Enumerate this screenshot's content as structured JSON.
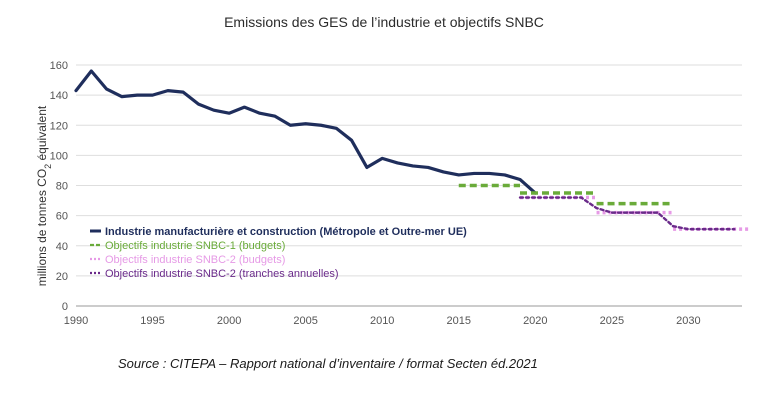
{
  "chart_data": {
    "type": "line",
    "title": "Emissions des GES de l’industrie et objectifs SNBC",
    "ylabel_main": "millions de tonnes CO",
    "ylabel_sub": "2",
    "ylabel_tail": " équivalent",
    "xlabel": "",
    "ylim": [
      0,
      160
    ],
    "xlim": [
      1990,
      2033.5
    ],
    "grid": true,
    "legend_position": "bottom-left",
    "x_ticks": [
      1990,
      1995,
      2000,
      2005,
      2010,
      2015,
      2020,
      2025,
      2030
    ],
    "y_ticks": [
      0,
      20,
      40,
      60,
      80,
      100,
      120,
      140,
      160
    ],
    "series": [
      {
        "name": "Industrie manufacturière et construction (Métropole et Outre-mer UE)",
        "style": "solid",
        "color": "#1f2e5c",
        "x": [
          1990,
          1991,
          1992,
          1993,
          1994,
          1995,
          1996,
          1997,
          1998,
          1999,
          2000,
          2001,
          2002,
          2003,
          2004,
          2005,
          2006,
          2007,
          2008,
          2009,
          2010,
          2011,
          2012,
          2013,
          2014,
          2015,
          2016,
          2017,
          2018,
          2019,
          2020
        ],
        "y": [
          143,
          156,
          144,
          139,
          140,
          140,
          143,
          142,
          134,
          130,
          128,
          132,
          128,
          126,
          120,
          121,
          120,
          118,
          110,
          92,
          98,
          95,
          93,
          92,
          89,
          87,
          88,
          88,
          87,
          84,
          75
        ]
      },
      {
        "name": "Objectifs industrie SNBC-1 (budgets)",
        "style": "dashed",
        "color": "#6aab3a",
        "steps": [
          [
            2015,
            2019,
            80
          ],
          [
            2019,
            2024,
            75
          ],
          [
            2024,
            2029,
            68
          ]
        ]
      },
      {
        "name": "Objectifs industrie SNBC-2 (budgets)",
        "style": "dotted",
        "color": "#e69ae6",
        "steps": [
          [
            2019,
            2024,
            72
          ],
          [
            2024,
            2029,
            62
          ],
          [
            2029,
            2034,
            51
          ]
        ]
      },
      {
        "name": "Objectifs industrie SNBC-2 (tranches annuelles)",
        "style": "dotted",
        "color": "#6a2a8a",
        "x": [
          2019,
          2020,
          2021,
          2022,
          2023,
          2024,
          2025,
          2026,
          2027,
          2028,
          2029,
          2030,
          2031,
          2032,
          2033
        ],
        "y": [
          72,
          72,
          72,
          72,
          72,
          65,
          62,
          62,
          62,
          62,
          53,
          51,
          51,
          51,
          51
        ]
      }
    ],
    "source": "Source : CITEPA – Rapport national d’inventaire / format Secten éd.2021"
  }
}
